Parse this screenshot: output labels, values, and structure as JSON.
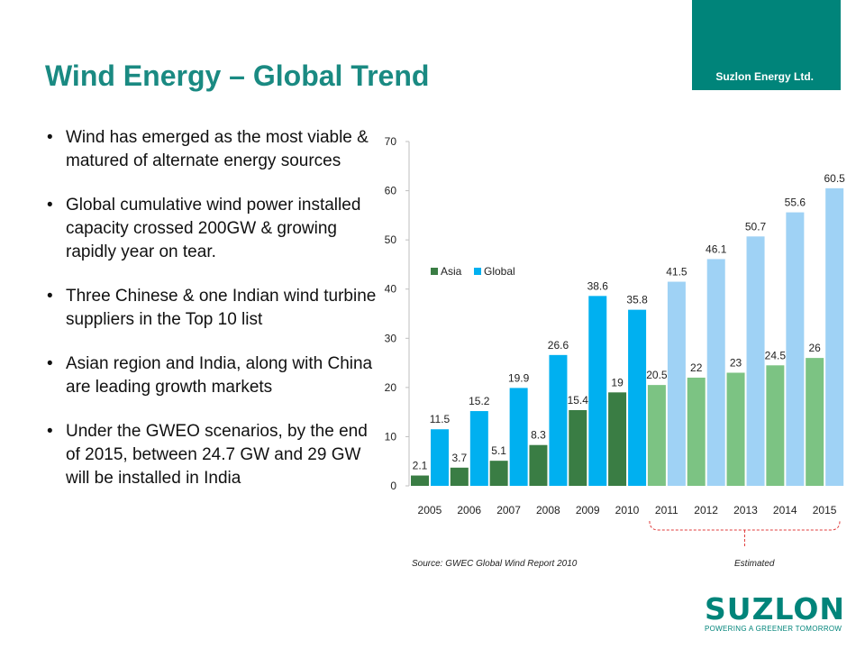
{
  "header": {
    "company": "Suzlon Energy Ltd.",
    "title": "Wind Energy – Global Trend"
  },
  "bullets": [
    "Wind has emerged as the most viable & matured of alternate energy sources",
    "Global cumulative wind power installed capacity crossed 200GW & growing rapidly year on tear.",
    "Three Chinese & one Indian wind turbine suppliers in the Top 10 list",
    "Asian region and India, along with China are leading growth markets",
    "Under the GWEO scenarios, by the end of 2015, between 24.7 GW and 29 GW will be installed in India"
  ],
  "bullet_symbol": "•",
  "chart_data": {
    "type": "bar",
    "categories": [
      "2005",
      "2006",
      "2007",
      "2008",
      "2009",
      "2010",
      "2011",
      "2012",
      "2013",
      "2014",
      "2015"
    ],
    "series": [
      {
        "name": "Asia",
        "values": [
          2.1,
          3.7,
          5.1,
          8.3,
          15.4,
          19,
          20.5,
          22,
          23,
          24.5,
          26
        ],
        "color": "#3a7d44",
        "estimated_color": "#7cc383"
      },
      {
        "name": "Global",
        "values": [
          11.5,
          15.2,
          19.9,
          26.6,
          38.6,
          35.8,
          41.5,
          46.1,
          50.7,
          55.6,
          60.5
        ],
        "color": "#00b0f0",
        "estimated_color": "#9fd2f5"
      }
    ],
    "estimated_categories": [
      "2011",
      "2012",
      "2013",
      "2014",
      "2015"
    ],
    "ylim": [
      0,
      70
    ],
    "yticks": [
      0,
      10,
      20,
      30,
      40,
      50,
      60,
      70
    ],
    "legend_position": "center-left",
    "grid": false
  },
  "notes": {
    "source": "Source: GWEC  Global Wind Report 2010",
    "estimated": "Estimated"
  },
  "logo": {
    "word": "SUZLON",
    "tagline": "POWERING A GREENER TOMORROW"
  },
  "colors": {
    "brand_teal": "#00847a",
    "title_teal": "#1a8a82",
    "estimate_bracket": "#e03c3c"
  }
}
